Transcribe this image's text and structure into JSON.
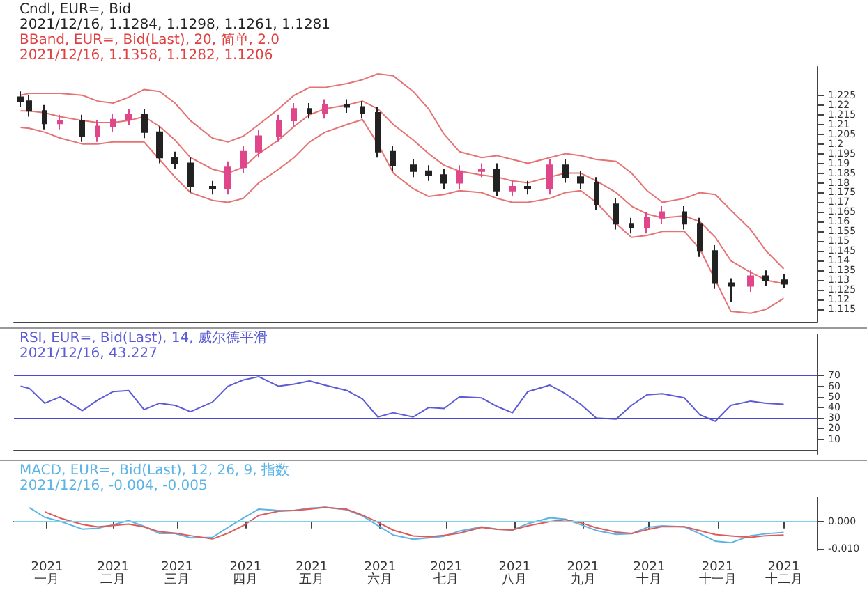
{
  "chart_data": [
    {
      "type": "candlestick",
      "title": "Cndl, EUR=, Bid",
      "subtitle": "2021/12/16, 1.1284, 1.1298, 1.1261, 1.1281",
      "annotations": [
        "BBand, EUR=, Bid(Last), 20, 简单, 2.0",
        "2021/12/16, 1.1358, 1.1282, 1.1206"
      ],
      "x": [
        "2021-01-04",
        "2021-01-08",
        "2021-01-15",
        "2021-01-22",
        "2021-02-01",
        "2021-02-08",
        "2021-02-15",
        "2021-02-22",
        "2021-03-01",
        "2021-03-08",
        "2021-03-15",
        "2021-03-22",
        "2021-04-01",
        "2021-04-08",
        "2021-04-15",
        "2021-04-22",
        "2021-05-01",
        "2021-05-08",
        "2021-05-15",
        "2021-05-22",
        "2021-06-01",
        "2021-06-08",
        "2021-06-15",
        "2021-06-22",
        "2021-07-01",
        "2021-07-08",
        "2021-07-15",
        "2021-07-22",
        "2021-08-01",
        "2021-08-08",
        "2021-08-15",
        "2021-08-22",
        "2021-09-01",
        "2021-09-08",
        "2021-09-15",
        "2021-09-22",
        "2021-10-01",
        "2021-10-08",
        "2021-10-15",
        "2021-10-22",
        "2021-11-01",
        "2021-11-08",
        "2021-11-15",
        "2021-11-22",
        "2021-12-01",
        "2021-12-08",
        "2021-12-16"
      ],
      "ohlc": [
        [
          1.224,
          1.227,
          1.219,
          1.222
        ],
        [
          1.222,
          1.225,
          1.214,
          1.217
        ],
        [
          1.217,
          1.22,
          1.2075,
          1.2105
        ],
        [
          1.2105,
          1.215,
          1.2075,
          1.212
        ],
        [
          1.212,
          1.215,
          1.201,
          1.204
        ],
        [
          1.204,
          1.212,
          1.201,
          1.209
        ],
        [
          1.209,
          1.2155,
          1.206,
          1.2125
        ],
        [
          1.2125,
          1.218,
          1.2095,
          1.215
        ],
        [
          1.215,
          1.218,
          1.203,
          1.206
        ],
        [
          1.206,
          1.209,
          1.19,
          1.193
        ],
        [
          1.193,
          1.196,
          1.187,
          1.19
        ],
        [
          1.19,
          1.193,
          1.175,
          1.178
        ],
        [
          1.178,
          1.181,
          1.174,
          1.177
        ],
        [
          1.177,
          1.191,
          1.174,
          1.188
        ],
        [
          1.188,
          1.199,
          1.185,
          1.196
        ],
        [
          1.196,
          1.207,
          1.193,
          1.204
        ],
        [
          1.204,
          1.215,
          1.201,
          1.212
        ],
        [
          1.212,
          1.221,
          1.209,
          1.218
        ],
        [
          1.218,
          1.221,
          1.213,
          1.216
        ],
        [
          1.216,
          1.223,
          1.213,
          1.22
        ],
        [
          1.22,
          1.223,
          1.216,
          1.219
        ],
        [
          1.219,
          1.222,
          1.213,
          1.216
        ],
        [
          1.216,
          1.219,
          1.193,
          1.196
        ],
        [
          1.196,
          1.199,
          1.186,
          1.189
        ],
        [
          1.189,
          1.192,
          1.183,
          1.186
        ],
        [
          1.186,
          1.189,
          1.181,
          1.184
        ],
        [
          1.184,
          1.187,
          1.177,
          1.18
        ],
        [
          1.18,
          1.189,
          1.177,
          1.186
        ],
        [
          1.186,
          1.19,
          1.183,
          1.187
        ],
        [
          1.187,
          1.19,
          1.173,
          1.176
        ],
        [
          1.176,
          1.181,
          1.173,
          1.178
        ],
        [
          1.178,
          1.181,
          1.174,
          1.177
        ],
        [
          1.177,
          1.192,
          1.174,
          1.189
        ],
        [
          1.189,
          1.192,
          1.18,
          1.183
        ],
        [
          1.183,
          1.186,
          1.177,
          1.18
        ],
        [
          1.18,
          1.183,
          1.166,
          1.169
        ],
        [
          1.169,
          1.172,
          1.156,
          1.159
        ],
        [
          1.159,
          1.162,
          1.154,
          1.157
        ],
        [
          1.157,
          1.165,
          1.154,
          1.162
        ],
        [
          1.162,
          1.168,
          1.159,
          1.165
        ],
        [
          1.165,
          1.168,
          1.156,
          1.159
        ],
        [
          1.159,
          1.162,
          1.142,
          1.145
        ],
        [
          1.145,
          1.148,
          1.1255,
          1.1285
        ],
        [
          1.1285,
          1.131,
          1.119,
          1.127
        ],
        [
          1.127,
          1.135,
          1.124,
          1.132
        ],
        [
          1.132,
          1.135,
          1.127,
          1.13
        ],
        [
          1.13,
          1.133,
          1.126,
          1.1281
        ]
      ],
      "colors": [
        "#222222",
        "#222222",
        "#222222",
        "#e0468a",
        "#222222",
        "#e0468a",
        "#e0468a",
        "#e0468a",
        "#222222",
        "#222222",
        "#222222",
        "#222222",
        "#222222",
        "#e0468a",
        "#e0468a",
        "#e0468a",
        "#e0468a",
        "#e0468a",
        "#222222",
        "#e0468a",
        "#222222",
        "#222222",
        "#222222",
        "#222222",
        "#222222",
        "#222222",
        "#222222",
        "#e0468a",
        "#e0468a",
        "#222222",
        "#e0468a",
        "#222222",
        "#e0468a",
        "#222222",
        "#222222",
        "#222222",
        "#222222",
        "#222222",
        "#e0468a",
        "#e0468a",
        "#222222",
        "#222222",
        "#222222",
        "#222222",
        "#e0468a",
        "#222222",
        "#222222"
      ],
      "series": [
        {
          "type": "line",
          "color": "#e57373",
          "values": [
            1.225,
            1.226,
            1.226,
            1.226,
            1.225,
            1.222,
            1.221,
            1.224,
            1.228,
            1.227,
            1.221,
            1.212,
            1.203,
            1.201,
            1.204,
            1.21,
            1.218,
            1.225,
            1.229,
            1.229,
            1.231,
            1.233,
            1.236,
            1.235,
            1.227,
            1.218,
            1.205,
            1.196,
            1.193,
            1.194,
            1.192,
            1.19,
            1.193,
            1.195,
            1.194,
            1.192,
            1.191,
            1.185,
            1.176,
            1.17,
            1.172,
            1.175,
            1.174,
            1.166,
            1.156,
            1.145,
            1.1358
          ]
        },
        {
          "type": "line",
          "color": "#e57373",
          "values": [
            1.217,
            1.217,
            1.216,
            1.214,
            1.212,
            1.211,
            1.211,
            1.212,
            1.214,
            1.209,
            1.202,
            1.193,
            1.187,
            1.185,
            1.188,
            1.195,
            1.202,
            1.209,
            1.215,
            1.218,
            1.22,
            1.222,
            1.218,
            1.21,
            1.202,
            1.195,
            1.189,
            1.186,
            1.184,
            1.183,
            1.181,
            1.18,
            1.183,
            1.185,
            1.185,
            1.181,
            1.175,
            1.168,
            1.164,
            1.162,
            1.163,
            1.16,
            1.152,
            1.14,
            1.134,
            1.13,
            1.1282
          ]
        },
        {
          "type": "line",
          "color": "#e57373",
          "values": [
            1.2085,
            1.208,
            1.206,
            1.203,
            1.2,
            1.2,
            1.201,
            1.201,
            1.201,
            1.192,
            1.183,
            1.175,
            1.171,
            1.17,
            1.172,
            1.18,
            1.187,
            1.193,
            1.201,
            1.206,
            1.21,
            1.2125,
            1.2,
            1.185,
            1.177,
            1.173,
            1.174,
            1.176,
            1.175,
            1.172,
            1.17,
            1.17,
            1.172,
            1.175,
            1.176,
            1.17,
            1.159,
            1.152,
            1.153,
            1.155,
            1.155,
            1.146,
            1.13,
            1.114,
            1.113,
            1.115,
            1.1206
          ]
        }
      ],
      "marker": "none",
      "xlim": [
        "2021-01-01",
        "2021-12-31"
      ],
      "ylim": [
        1.1086,
        1.2396
      ],
      "yticks": [
        1.115,
        1.12,
        1.125,
        1.13,
        1.135,
        1.14,
        1.145,
        1.15,
        1.155,
        1.16,
        1.165,
        1.17,
        1.175,
        1.18,
        1.185,
        1.19,
        1.195,
        1.2,
        1.205,
        1.21,
        1.215,
        1.22,
        1.225
      ],
      "tick_labels": "y"
    },
    {
      "type": "line",
      "title": "RSI, EUR=, Bid(Last), 14, 威尔德平滑",
      "subtitle": "2021/12/16, 43.227",
      "x": [
        "2021-01-04",
        "2021-01-08",
        "2021-01-15",
        "2021-01-22",
        "2021-02-01",
        "2021-02-08",
        "2021-02-15",
        "2021-02-22",
        "2021-03-01",
        "2021-03-08",
        "2021-03-15",
        "2021-03-22",
        "2021-04-01",
        "2021-04-08",
        "2021-04-15",
        "2021-04-22",
        "2021-05-01",
        "2021-05-08",
        "2021-05-15",
        "2021-05-22",
        "2021-06-01",
        "2021-06-08",
        "2021-06-15",
        "2021-06-22",
        "2021-07-01",
        "2021-07-08",
        "2021-07-15",
        "2021-07-22",
        "2021-08-01",
        "2021-08-08",
        "2021-08-15",
        "2021-08-22",
        "2021-09-01",
        "2021-09-08",
        "2021-09-15",
        "2021-09-22",
        "2021-10-01",
        "2021-10-08",
        "2021-10-15",
        "2021-10-22",
        "2021-11-01",
        "2021-11-08",
        "2021-11-15",
        "2021-11-22",
        "2021-12-01",
        "2021-12-08",
        "2021-12-16"
      ],
      "series": [
        {
          "color": "#5b5bd6",
          "values": [
            60,
            58,
            44,
            50,
            37,
            47,
            55,
            56,
            38,
            44,
            42,
            36,
            45,
            60,
            66,
            69,
            60,
            62,
            65,
            61,
            56,
            48,
            31,
            35,
            31,
            40,
            39,
            50,
            49,
            41,
            35,
            55,
            61,
            53,
            43,
            30,
            29,
            42,
            52,
            53,
            49,
            33,
            27,
            42,
            46,
            44,
            43
          ]
        }
      ],
      "ref_lines": [
        {
          "axis": "y",
          "value": 70,
          "color": "#4a4ad0"
        },
        {
          "axis": "y",
          "value": 30,
          "color": "#4a4ad0"
        }
      ],
      "marker": "none",
      "xlim": [
        "2021-01-01",
        "2021-12-31"
      ],
      "ylim": [
        -4,
        109
      ],
      "yticks": [
        10,
        20,
        30,
        40,
        50,
        60,
        70
      ],
      "tick_labels": "y"
    },
    {
      "type": "line",
      "title": "MACD, EUR=, Bid(Last), 12, 26, 9, 指数",
      "subtitle": "2021/12/16, -0.004, -0.005",
      "x": [
        "2021-01-08",
        "2021-01-15",
        "2021-01-22",
        "2021-02-01",
        "2021-02-08",
        "2021-02-15",
        "2021-02-22",
        "2021-03-01",
        "2021-03-08",
        "2021-03-15",
        "2021-03-22",
        "2021-04-01",
        "2021-04-08",
        "2021-04-15",
        "2021-04-22",
        "2021-05-01",
        "2021-05-08",
        "2021-05-15",
        "2021-05-22",
        "2021-06-01",
        "2021-06-08",
        "2021-06-15",
        "2021-06-22",
        "2021-07-01",
        "2021-07-08",
        "2021-07-15",
        "2021-07-22",
        "2021-08-01",
        "2021-08-08",
        "2021-08-15",
        "2021-08-22",
        "2021-09-01",
        "2021-09-08",
        "2021-09-15",
        "2021-09-22",
        "2021-10-01",
        "2021-10-08",
        "2021-10-15",
        "2021-10-22",
        "2021-11-01",
        "2021-11-08",
        "2021-11-15",
        "2021-11-22",
        "2021-12-01",
        "2021-12-08",
        "2021-12-16"
      ],
      "series": [
        {
          "color": "#5ab4e6",
          "values": [
            0.005,
            0.0015,
            0,
            -0.0028,
            -0.0025,
            -0.0012,
            0.0003,
            -0.0018,
            -0.0044,
            -0.0044,
            -0.006,
            -0.0058,
            -0.0022,
            0.0012,
            0.0045,
            0.004,
            0.004,
            0.0048,
            0.0052,
            0.0042,
            0.002,
            -0.0015,
            -0.005,
            -0.0065,
            -0.006,
            -0.0054,
            -0.0035,
            -0.002,
            -0.0028,
            -0.0032,
            -0.0008,
            0.0013,
            0.0008,
            -0.0012,
            -0.0033,
            -0.0047,
            -0.0045,
            -0.0022,
            -0.0016,
            -0.002,
            -0.0045,
            -0.0072,
            -0.0078,
            -0.0052,
            -0.0045,
            -0.004
          ]
        },
        {
          "color": "#e05a5a",
          "values": [
            null,
            0.0035,
            0.0012,
            -0.0011,
            -0.002,
            -0.0015,
            -0.001,
            -0.002,
            -0.0038,
            -0.0043,
            -0.0052,
            -0.0064,
            -0.0043,
            -0.0015,
            0.0022,
            0.0037,
            0.004,
            0.0045,
            0.0051,
            0.0044,
            0.0023,
            -0.0003,
            -0.0032,
            -0.0053,
            -0.0056,
            -0.0051,
            -0.0043,
            -0.0022,
            -0.0029,
            -0.0031,
            -0.0016,
            -0.0001,
            0.0006,
            -0.0005,
            -0.0023,
            -0.0039,
            -0.0044,
            -0.003,
            -0.0019,
            -0.0019,
            -0.0034,
            -0.0048,
            -0.0053,
            -0.0058,
            -0.0052,
            -0.005
          ]
        }
      ],
      "ref_lines": [
        {
          "axis": "y",
          "value": 0,
          "color": "#7fd3ea"
        }
      ],
      "marker": "none",
      "xlim": [
        "2021-01-01",
        "2021-12-31"
      ],
      "ylim": [
        -0.0105,
        0.0088
      ],
      "yticks": [
        {
          "value": -0.01,
          "label": "-0.010"
        },
        {
          "value": 0,
          "label": "0.000"
        }
      ],
      "xticks": [
        {
          "value": "2021-01-16",
          "label": "2021 一月"
        },
        {
          "value": "2021-02-15",
          "label": "2021 二月"
        },
        {
          "value": "2021-03-16",
          "label": "2021 三月"
        },
        {
          "value": "2021-04-16",
          "label": "2021 四月"
        },
        {
          "value": "2021-05-16",
          "label": "2021 五月"
        },
        {
          "value": "2021-06-16",
          "label": "2021 六月"
        },
        {
          "value": "2021-07-16",
          "label": "2021 七月"
        },
        {
          "value": "2021-08-16",
          "label": "2021 八月"
        },
        {
          "value": "2021-09-16",
          "label": "2021 九月"
        },
        {
          "value": "2021-10-16",
          "label": "2021 十月"
        },
        {
          "value": "2021-11-16",
          "label": "2021 十一月"
        },
        {
          "value": "2021-12-16",
          "label": "2021 十二月"
        }
      ]
    }
  ]
}
